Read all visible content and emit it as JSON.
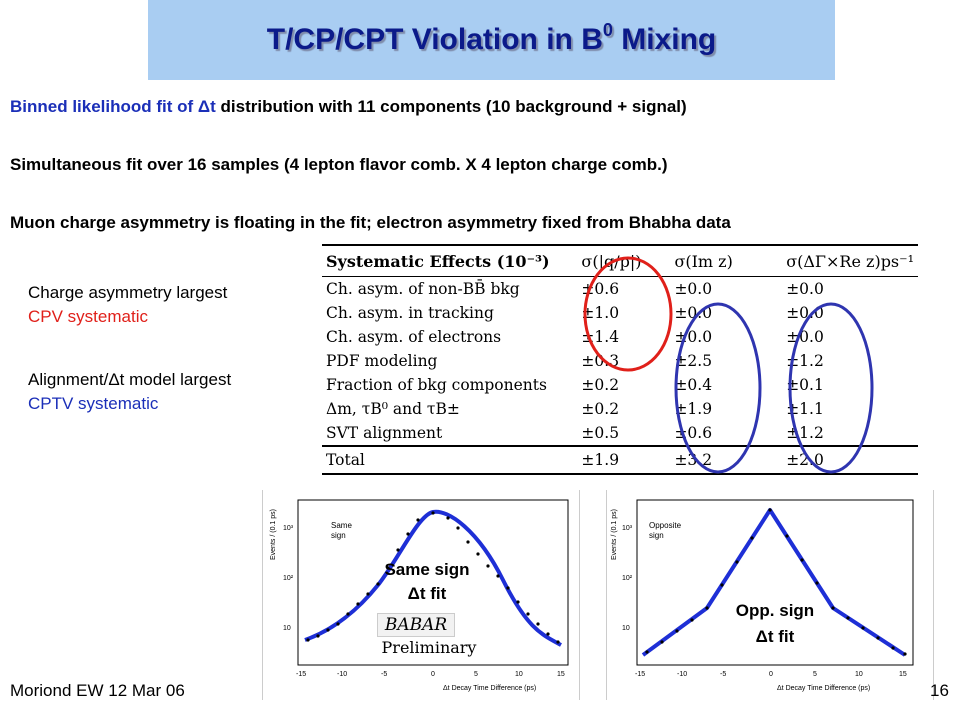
{
  "title": {
    "main": "T/CP/CPT Violation in B",
    "sup": "0",
    "tail": " Mixing"
  },
  "bullets": {
    "b1_blue": "Binned likelihood fit of Δt",
    "b1_rest": " distribution with 11 components (10 background + signal)",
    "b2": "Simultaneous fit over 16 samples (4 lepton flavor comb. X 4 lepton charge comb.)",
    "b3": "Muon charge asymmetry is floating in the fit; electron asymmetry fixed from Bhabha data"
  },
  "notes": {
    "n1_line1": "Charge asymmetry largest",
    "n1_line2": "CPV systematic",
    "n2_line1": "Alignment/Δt model largest",
    "n2_line2": "CPTV systematic"
  },
  "table": {
    "headers": [
      "Systematic Effects (10⁻³)",
      "σ(|q/p|)",
      "σ(Im z)",
      "σ(ΔΓ×Re z)ps⁻¹"
    ],
    "rows": [
      [
        "Ch. asym. of non-BB̄ bkg",
        "±0.6",
        "±0.0",
        "±0.0"
      ],
      [
        "Ch. asym. in tracking",
        "±1.0",
        "±0.0",
        "±0.0"
      ],
      [
        "Ch. asym. of electrons",
        "±1.4",
        "±0.0",
        "±0.0"
      ],
      [
        "PDF modeling",
        "±0.3",
        "±2.5",
        "±1.2"
      ],
      [
        "Fraction of bkg components",
        "±0.2",
        "±0.4",
        "±0.1"
      ],
      [
        "Δm, τB⁰ and τB±",
        "±0.2",
        "±1.9",
        "±1.1"
      ],
      [
        "SVT alignment",
        "±0.5",
        "±0.6",
        "±1.2"
      ]
    ],
    "total": [
      "Total",
      "±1.9",
      "±3.2",
      "±2.0"
    ]
  },
  "plots": {
    "left": {
      "legend_line1": "Same",
      "legend_line2": "sign",
      "label_line1": "Same sign",
      "label_line2": "Δt fit",
      "ylabel": "Events / (0.1 ps)",
      "xlabel": "Δt Decay Time Difference (ps)",
      "xticks": [
        "-15",
        "-10",
        "-5",
        "0",
        "5",
        "10",
        "15"
      ],
      "yticks": [
        "10³",
        "10²",
        "10"
      ]
    },
    "right": {
      "legend_line1": "Opposite",
      "legend_line2": "sign",
      "label_line1": "Opp. sign",
      "label_line2": "Δt fit",
      "ylabel": "Events / (0.1 ps)",
      "xlabel": "Δt Decay Time Difference (ps)",
      "xticks": [
        "-15",
        "-10",
        "-5",
        "0",
        "5",
        "10",
        "15"
      ],
      "yticks": [
        "10³",
        "10²",
        "10"
      ]
    }
  },
  "babar": "BABAR",
  "preliminary": "Preliminary",
  "footer": {
    "left": "Moriond EW 12 Mar 06",
    "page": "16"
  },
  "colors": {
    "title_bg": "#a9cdf2",
    "title_text": "#0b1a8a",
    "blue_text": "#1b2fb8",
    "red_text": "#e0201a",
    "fit_curve": "#1e2fd6",
    "red_circle": "#e0201a",
    "blue_circle": "#2f35b0"
  }
}
